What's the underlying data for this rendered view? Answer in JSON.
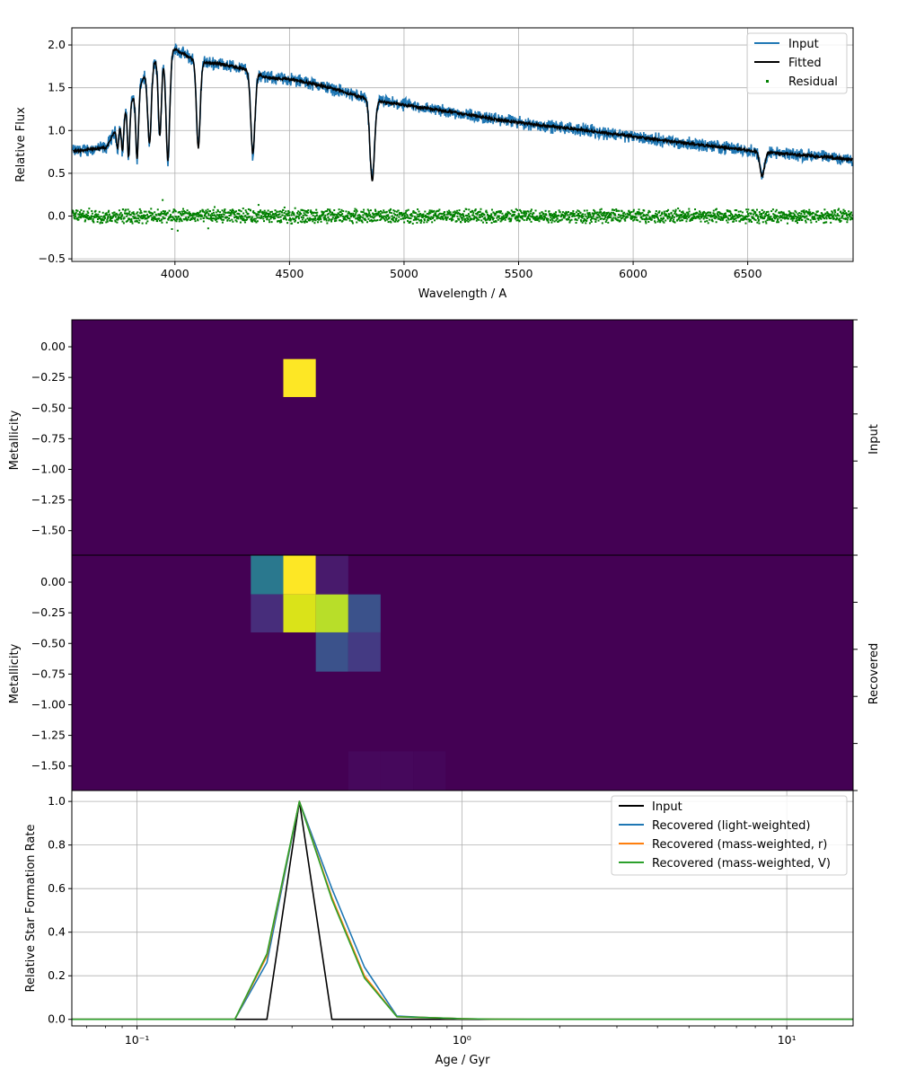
{
  "chart_data": [
    {
      "type": "line",
      "xlabel": "Wavelength / A",
      "ylabel": "Relative Flux",
      "xlim": [
        3550,
        6960
      ],
      "ylim": [
        -0.53,
        2.2
      ],
      "xticks": [
        4000,
        4500,
        5000,
        5500,
        6000,
        6500
      ],
      "xtick_labels": [
        "4000",
        "4500",
        "5000",
        "5500",
        "6000",
        "6500"
      ],
      "yticks": [
        -0.5,
        0.0,
        0.5,
        1.0,
        1.5,
        2.0
      ],
      "ytick_labels": [
        "−0.5",
        "0.0",
        "0.5",
        "1.0",
        "1.5",
        "2.0"
      ],
      "grid": true,
      "legend": "top-right",
      "series": [
        {
          "name": "Input",
          "color": "#1f77b4",
          "style": "line"
        },
        {
          "name": "Fitted",
          "color": "#000000",
          "style": "line"
        },
        {
          "name": "Residual",
          "color": "#008000",
          "style": "scatter"
        }
      ],
      "continuum": {
        "x": [
          3560,
          3700,
          3800,
          3900,
          4000,
          4100,
          4200,
          4300,
          4400,
          4500,
          4600,
          4700,
          4800,
          4900,
          5000,
          5200,
          5400,
          5600,
          5800,
          6000,
          6200,
          6400,
          6600,
          6800,
          6960
        ],
        "y": [
          0.76,
          0.8,
          1.3,
          1.8,
          1.95,
          1.8,
          1.78,
          1.72,
          1.62,
          1.6,
          1.55,
          1.48,
          1.4,
          1.34,
          1.3,
          1.22,
          1.13,
          1.06,
          1.0,
          0.93,
          0.86,
          0.8,
          0.74,
          0.7,
          0.66
        ]
      },
      "absorption_lines": [
        {
          "x": 3750,
          "depth": 0.25,
          "width": 5
        },
        {
          "x": 3771,
          "depth": 0.4,
          "width": 5
        },
        {
          "x": 3798,
          "depth": 0.6,
          "width": 5
        },
        {
          "x": 3835,
          "depth": 0.8,
          "width": 6
        },
        {
          "x": 3889,
          "depth": 0.9,
          "width": 8
        },
        {
          "x": 3934,
          "depth": 0.9,
          "width": 7
        },
        {
          "x": 3969,
          "depth": 1.25,
          "width": 8
        },
        {
          "x": 4102,
          "depth": 1.0,
          "width": 8
        },
        {
          "x": 4340,
          "depth": 0.95,
          "width": 9
        },
        {
          "x": 4861,
          "depth": 0.95,
          "width": 10
        },
        {
          "x": 6563,
          "depth": 0.28,
          "width": 10
        }
      ]
    },
    {
      "type": "heatmap",
      "ylabel": "Metallicity",
      "side_label": "Input",
      "ylim": [
        -1.7,
        0.22
      ],
      "yticks": [
        0.0,
        -0.25,
        -0.5,
        -0.75,
        -1.0,
        -1.25,
        -1.5
      ],
      "ytick_labels": [
        "0.00",
        "−0.25",
        "−0.50",
        "−0.75",
        "−1.00",
        "−1.25",
        "−1.50"
      ],
      "background_color": "#440154",
      "cells": [
        {
          "age_gyr": [
            0.282,
            0.355
          ],
          "z": [
            -0.41,
            -0.1
          ],
          "value": 1.0,
          "color": "#fde725"
        }
      ]
    },
    {
      "type": "heatmap",
      "ylabel": "Metallicity",
      "side_label": "Recovered",
      "ylim": [
        -1.7,
        0.22
      ],
      "yticks": [
        0.0,
        -0.25,
        -0.5,
        -0.75,
        -1.0,
        -1.25,
        -1.5
      ],
      "ytick_labels": [
        "0.00",
        "−0.25",
        "−0.50",
        "−0.75",
        "−1.00",
        "−1.25",
        "−1.50"
      ],
      "background_color": "#440154",
      "cells": [
        {
          "age_gyr": [
            0.224,
            0.282
          ],
          "z": [
            -0.1,
            0.22
          ],
          "value": 0.4,
          "color": "#2a788e"
        },
        {
          "age_gyr": [
            0.282,
            0.355
          ],
          "z": [
            -0.1,
            0.22
          ],
          "value": 1.0,
          "color": "#fde725"
        },
        {
          "age_gyr": [
            0.355,
            0.447
          ],
          "z": [
            -0.1,
            0.22
          ],
          "value": 0.05,
          "color": "#481a6c"
        },
        {
          "age_gyr": [
            0.224,
            0.282
          ],
          "z": [
            -0.41,
            -0.1
          ],
          "value": 0.15,
          "color": "#472d7b"
        },
        {
          "age_gyr": [
            0.282,
            0.355
          ],
          "z": [
            -0.41,
            -0.1
          ],
          "value": 0.92,
          "color": "#dae319"
        },
        {
          "age_gyr": [
            0.355,
            0.447
          ],
          "z": [
            -0.41,
            -0.1
          ],
          "value": 0.85,
          "color": "#b8de29"
        },
        {
          "age_gyr": [
            0.447,
            0.562
          ],
          "z": [
            -0.41,
            -0.1
          ],
          "value": 0.3,
          "color": "#3b528b"
        },
        {
          "age_gyr": [
            0.355,
            0.447
          ],
          "z": [
            -0.73,
            -0.41
          ],
          "value": 0.3,
          "color": "#3b528b"
        },
        {
          "age_gyr": [
            0.447,
            0.562
          ],
          "z": [
            -0.73,
            -0.41
          ],
          "value": 0.2,
          "color": "#443a83"
        },
        {
          "age_gyr": [
            0.447,
            0.562
          ],
          "z": [
            -1.7,
            -1.38
          ],
          "value": 0.03,
          "color": "#46085c"
        },
        {
          "age_gyr": [
            0.562,
            0.708
          ],
          "z": [
            -1.7,
            -1.38
          ],
          "value": 0.03,
          "color": "#46085c"
        },
        {
          "age_gyr": [
            0.708,
            0.891
          ],
          "z": [
            -1.7,
            -1.38
          ],
          "value": 0.02,
          "color": "#45065a"
        }
      ]
    },
    {
      "type": "line",
      "xlabel": "Age / Gyr",
      "ylabel": "Relative Star Formation Rate",
      "xscale": "log",
      "xlim": [
        0.063,
        16.0
      ],
      "ylim": [
        -0.03,
        1.05
      ],
      "xticks": [
        0.1,
        1,
        10
      ],
      "xtick_labels": [
        "10⁻¹",
        "10⁰",
        "10¹"
      ],
      "yticks": [
        0.0,
        0.2,
        0.4,
        0.6,
        0.8,
        1.0
      ],
      "ytick_labels": [
        "0.0",
        "0.2",
        "0.4",
        "0.6",
        "0.8",
        "1.0"
      ],
      "grid": true,
      "legend": "top-right",
      "x": [
        0.063,
        0.2,
        0.251,
        0.316,
        0.398,
        0.501,
        0.631,
        0.794,
        1.0,
        1.259,
        1.585,
        2.0,
        5.0,
        16.0
      ],
      "series": [
        {
          "name": "Input",
          "color": "#000000",
          "values": [
            0,
            0,
            0,
            1.0,
            0,
            0,
            0,
            0,
            0,
            0,
            0,
            0,
            0,
            0
          ]
        },
        {
          "name": "Recovered (light-weighted)",
          "color": "#1f77b4",
          "values": [
            0,
            0,
            0.26,
            1.0,
            0.6,
            0.24,
            0.015,
            0.008,
            0.003,
            0.001,
            0,
            0,
            0,
            0
          ]
        },
        {
          "name": "Recovered (mass-weighted, r)",
          "color": "#ff7f0e",
          "values": [
            0,
            0,
            0.29,
            1.0,
            0.56,
            0.2,
            0.012,
            0.008,
            0.003,
            0.001,
            0,
            0,
            0,
            0
          ]
        },
        {
          "name": "Recovered (mass-weighted, V)",
          "color": "#2ca02c",
          "values": [
            0,
            0,
            0.3,
            1.0,
            0.55,
            0.19,
            0.012,
            0.008,
            0.003,
            0.001,
            0,
            0,
            0,
            0
          ]
        }
      ]
    }
  ]
}
